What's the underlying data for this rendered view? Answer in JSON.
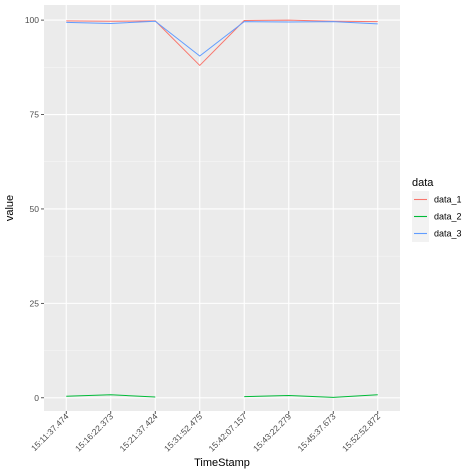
{
  "chart_data": {
    "type": "line",
    "xlabel": "TimeStamp",
    "ylabel": "value",
    "ylim": [
      -3.5,
      104
    ],
    "yticks": [
      0,
      25,
      50,
      75,
      100
    ],
    "categories": [
      "15:11:37.474",
      "15:16:22.373",
      "15:21:37.424",
      "15:31:52.475",
      "15:42:07.157",
      "15:43:22.279",
      "15:45:37.673",
      "15:52:52.872"
    ],
    "grid": true,
    "legend": {
      "title": "data",
      "placement": "right"
    },
    "series": [
      {
        "name": "data_1",
        "color": "#F8766D",
        "values": [
          99.8,
          99.7,
          99.8,
          88.0,
          99.9,
          100.0,
          99.7,
          99.6
        ]
      },
      {
        "name": "data_2",
        "color": "#00BA38",
        "values": [
          0.4,
          0.8,
          0.2,
          null,
          0.3,
          0.6,
          0.1,
          0.8
        ]
      },
      {
        "name": "data_3",
        "color": "#619CFF",
        "values": [
          99.4,
          99.1,
          99.7,
          90.5,
          99.6,
          99.5,
          99.6,
          99.0
        ]
      }
    ]
  }
}
